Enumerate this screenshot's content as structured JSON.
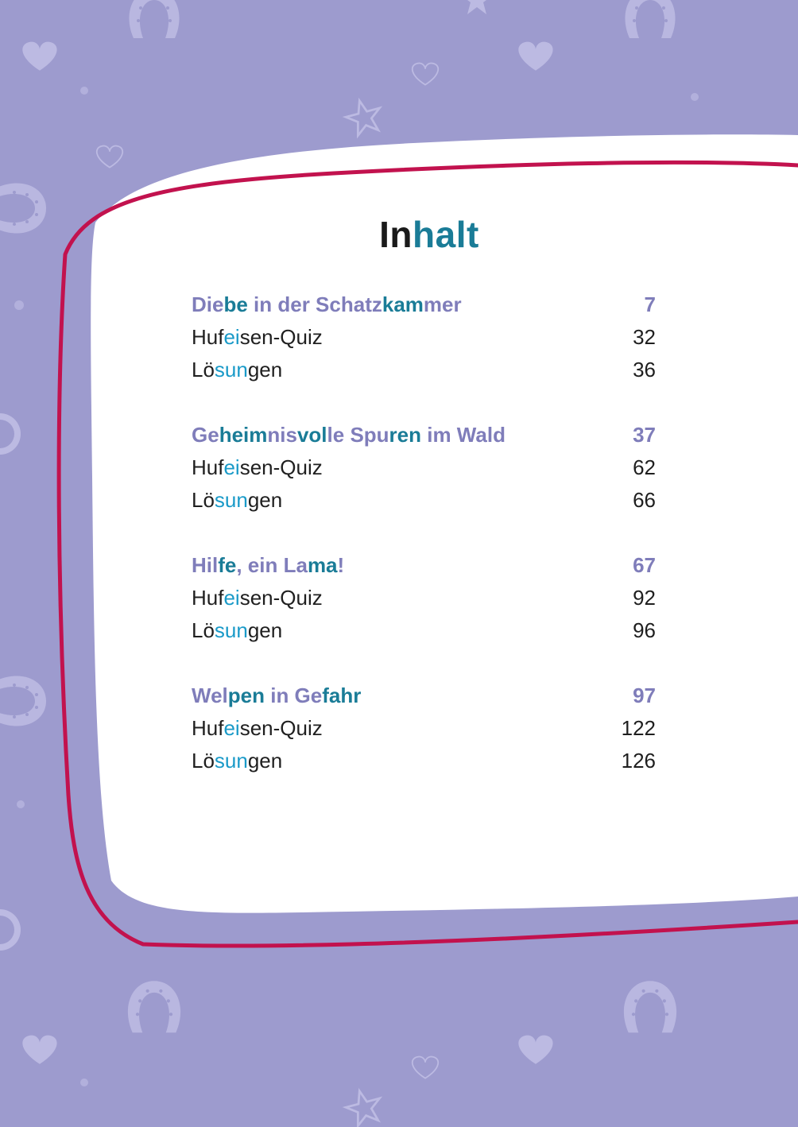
{
  "title": {
    "part1": "In",
    "part2": "halt"
  },
  "chapters": [
    {
      "title": [
        {
          "t": "Die",
          "h": false
        },
        {
          "t": "be",
          "h": true
        },
        {
          "t": " in der Schatz",
          "h": false
        },
        {
          "t": "kam",
          "h": true
        },
        {
          "t": "mer",
          "h": false
        }
      ],
      "page": "7",
      "items": [
        {
          "parts": [
            {
              "t": "Huf",
              "h": false
            },
            {
              "t": "ei",
              "h": true
            },
            {
              "t": "sen-Quiz",
              "h": false
            }
          ],
          "page": "32"
        },
        {
          "parts": [
            {
              "t": "Lö",
              "h": false
            },
            {
              "t": "sun",
              "h": true
            },
            {
              "t": "gen",
              "h": false
            }
          ],
          "page": "36"
        }
      ]
    },
    {
      "title": [
        {
          "t": "Ge",
          "h": false
        },
        {
          "t": "heim",
          "h": true
        },
        {
          "t": "nis",
          "h": false
        },
        {
          "t": "vol",
          "h": true
        },
        {
          "t": "le Spu",
          "h": false
        },
        {
          "t": "ren",
          "h": true
        },
        {
          "t": " im Wald",
          "h": false
        }
      ],
      "page": "37",
      "items": [
        {
          "parts": [
            {
              "t": "Huf",
              "h": false
            },
            {
              "t": "ei",
              "h": true
            },
            {
              "t": "sen-Quiz",
              "h": false
            }
          ],
          "page": "62"
        },
        {
          "parts": [
            {
              "t": "Lö",
              "h": false
            },
            {
              "t": "sun",
              "h": true
            },
            {
              "t": "gen",
              "h": false
            }
          ],
          "page": "66"
        }
      ]
    },
    {
      "title": [
        {
          "t": "Hil",
          "h": false
        },
        {
          "t": "fe",
          "h": true
        },
        {
          "t": ", ein La",
          "h": false
        },
        {
          "t": "ma",
          "h": true
        },
        {
          "t": "!",
          "h": false
        }
      ],
      "page": "67",
      "items": [
        {
          "parts": [
            {
              "t": "Huf",
              "h": false
            },
            {
              "t": "ei",
              "h": true
            },
            {
              "t": "sen-Quiz",
              "h": false
            }
          ],
          "page": "92"
        },
        {
          "parts": [
            {
              "t": "Lö",
              "h": false
            },
            {
              "t": "sun",
              "h": true
            },
            {
              "t": "gen",
              "h": false
            }
          ],
          "page": "96"
        }
      ]
    },
    {
      "title": [
        {
          "t": "Wel",
          "h": false
        },
        {
          "t": "pen",
          "h": true
        },
        {
          "t": " in Ge",
          "h": false
        },
        {
          "t": "fahr",
          "h": true
        }
      ],
      "page": "97",
      "items": [
        {
          "parts": [
            {
              "t": "Huf",
              "h": false
            },
            {
              "t": "ei",
              "h": true
            },
            {
              "t": "sen-Quiz",
              "h": false
            }
          ],
          "page": "122"
        },
        {
          "parts": [
            {
              "t": "Lö",
              "h": false
            },
            {
              "t": "sun",
              "h": true
            },
            {
              "t": "gen",
              "h": false
            }
          ],
          "page": "126"
        }
      ]
    }
  ],
  "colors": {
    "background": "#9d9bce",
    "panel": "#ffffff",
    "frame": "#c2124e",
    "chapter_text": "#7f7dba",
    "syllable_dark": "#1a7c97",
    "syllable_light": "#1a9ac8"
  }
}
